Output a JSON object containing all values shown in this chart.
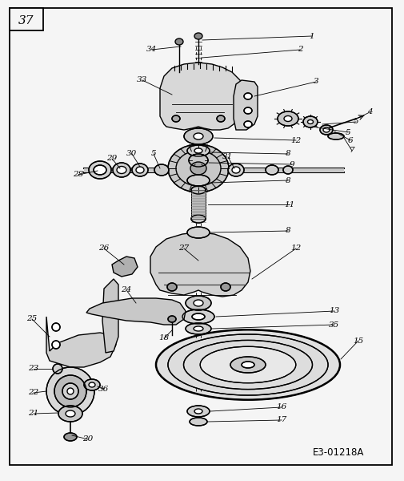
{
  "bg_color": "#f5f5f5",
  "border_color": "#000000",
  "diagram_ref": "E3-01218A",
  "page_number": "37",
  "figsize": [
    5.06,
    6.0
  ],
  "dpi": 100,
  "lw_thin": 0.6,
  "lw_med": 1.0,
  "lw_thick": 1.5,
  "label_fontsize": 7.5,
  "ref_fontsize": 8.5
}
